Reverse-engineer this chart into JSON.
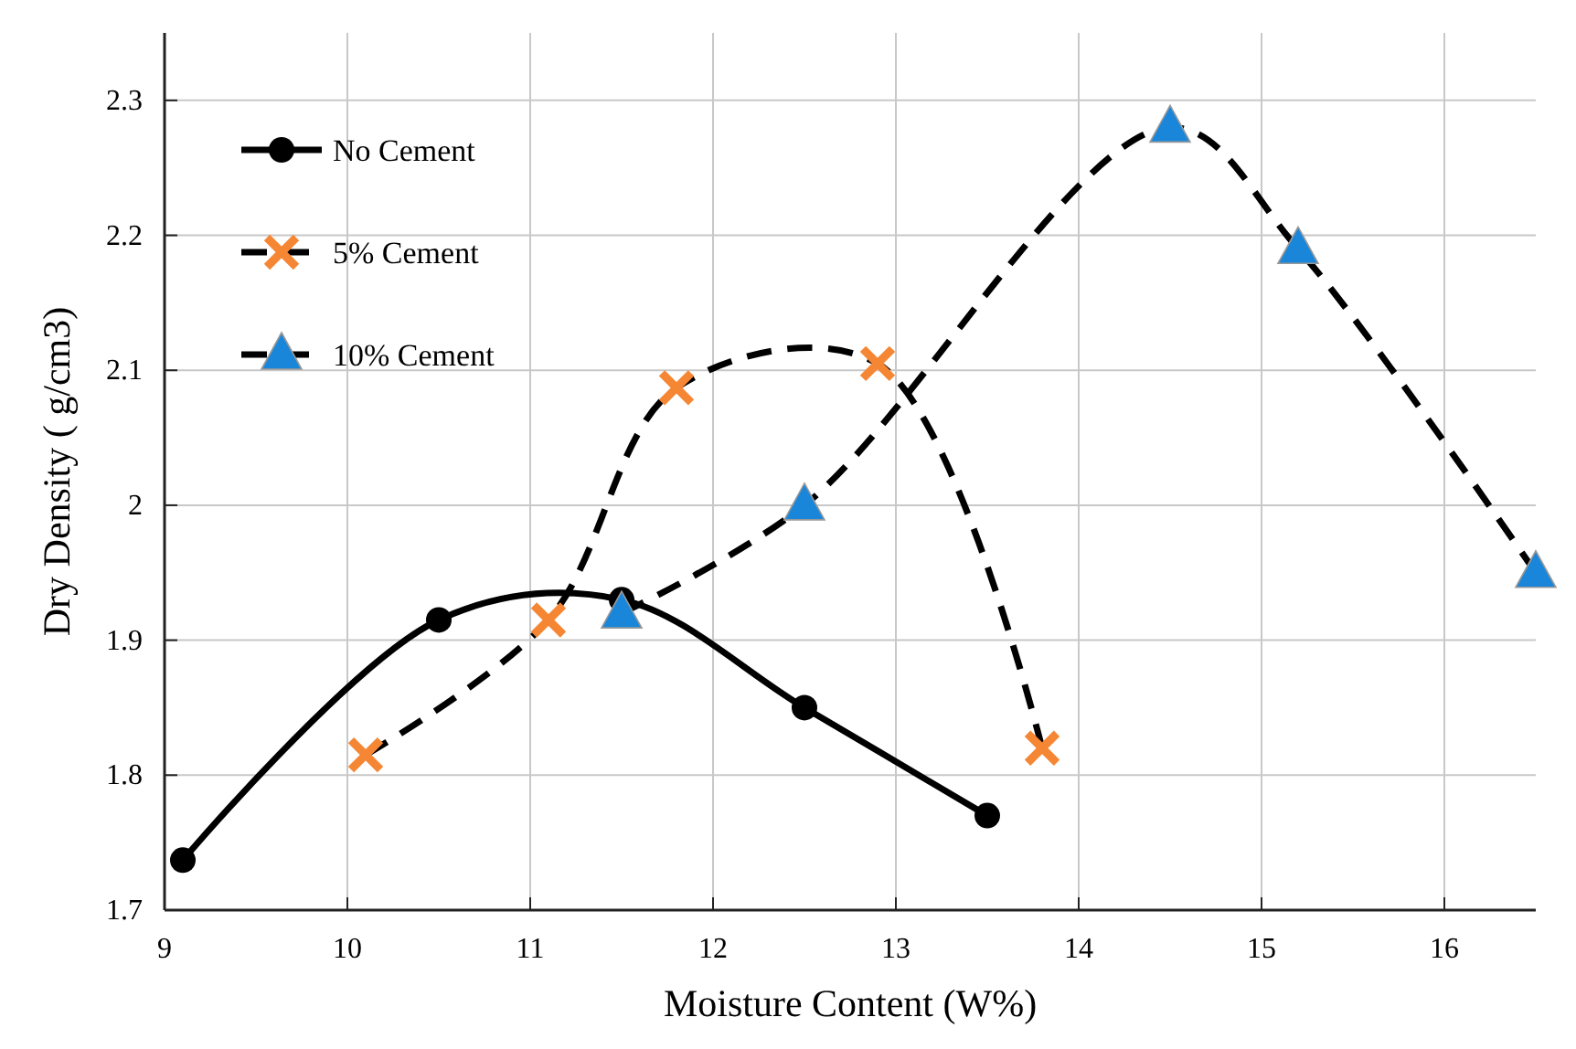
{
  "chart_data": {
    "type": "line",
    "xlabel": "Moisture Content (W%)",
    "ylabel": "Dry Density ( g/cm3)",
    "xlim": [
      9,
      16.5
    ],
    "xticks": [
      9,
      10,
      11,
      12,
      13,
      14,
      15,
      16
    ],
    "ylim": [
      1.7,
      2.35
    ],
    "yticks": [
      1.7,
      1.8,
      1.9,
      2,
      2.1,
      2.2,
      2.3
    ],
    "grid": true,
    "legend": "top left",
    "series": [
      {
        "name": "No Cement",
        "color": "#000000",
        "marker": "circle",
        "line_style": "solid",
        "x": [
          9.1,
          10.5,
          11.5,
          12.5,
          13.5
        ],
        "values": [
          1.737,
          1.915,
          1.93,
          1.85,
          1.77
        ]
      },
      {
        "name": "5% Cement",
        "color": "#f58634",
        "marker": "cross",
        "line_style": "dashed",
        "x": [
          10.1,
          11.1,
          11.8,
          12.9,
          13.8
        ],
        "values": [
          1.815,
          1.915,
          2.087,
          2.105,
          1.82
        ]
      },
      {
        "name": "10% Cement",
        "color": "#1a86d9",
        "marker": "triangle",
        "line_style": "dashed",
        "x": [
          11.5,
          12.5,
          14.5,
          15.2,
          16.5
        ],
        "values": [
          1.92,
          2.0,
          2.28,
          2.19,
          1.95
        ]
      }
    ]
  }
}
